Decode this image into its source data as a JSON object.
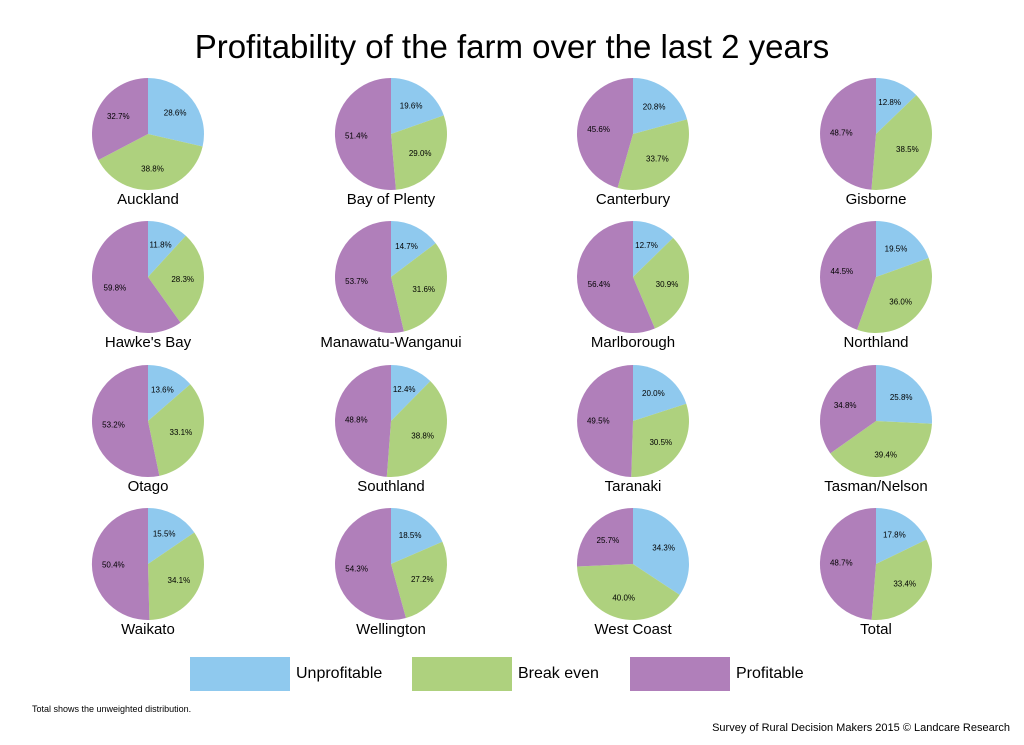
{
  "chart_data": {
    "type": "pie",
    "title": "Profitability of the farm over the last 2 years",
    "categories": [
      "Unprofitable",
      "Break even",
      "Profitable"
    ],
    "colors": [
      "#8fc9ee",
      "#aed17e",
      "#b07fba"
    ],
    "legend_position": "bottom",
    "pies": [
      {
        "label": "Auckland",
        "values": [
          28.6,
          38.8,
          32.7
        ],
        "value_labels": [
          "28.6%",
          "38.8%",
          "32.7%"
        ]
      },
      {
        "label": "Bay of Plenty",
        "values": [
          19.6,
          29.0,
          51.4
        ],
        "value_labels": [
          "19.6%",
          "29.0%",
          "51.4%"
        ]
      },
      {
        "label": "Canterbury",
        "values": [
          20.8,
          33.7,
          45.6
        ],
        "value_labels": [
          "20.8%",
          "33.7%",
          "45.6%"
        ]
      },
      {
        "label": "Gisborne",
        "values": [
          12.8,
          38.5,
          48.7
        ],
        "value_labels": [
          "12.8%",
          "38.5%",
          "48.7%"
        ]
      },
      {
        "label": "Hawke's Bay",
        "values": [
          11.8,
          28.3,
          59.8
        ],
        "value_labels": [
          "11.8%",
          "28.3%",
          "59.8%"
        ]
      },
      {
        "label": "Manawatu-Wanganui",
        "values": [
          14.7,
          31.6,
          53.7
        ],
        "value_labels": [
          "14.7%",
          "31.6%",
          "53.7%"
        ]
      },
      {
        "label": "Marlborough",
        "values": [
          12.7,
          30.9,
          56.4
        ],
        "value_labels": [
          "12.7%",
          "30.9%",
          "56.4%"
        ]
      },
      {
        "label": "Northland",
        "values": [
          19.5,
          36.0,
          44.5
        ],
        "value_labels": [
          "19.5%",
          "36.0%",
          "44.5%"
        ]
      },
      {
        "label": "Otago",
        "values": [
          13.6,
          33.1,
          53.2
        ],
        "value_labels": [
          "13.6%",
          "33.1%",
          "53.2%"
        ]
      },
      {
        "label": "Southland",
        "values": [
          12.4,
          38.8,
          48.8
        ],
        "value_labels": [
          "12.4%",
          "38.8%",
          "48.8%"
        ]
      },
      {
        "label": "Taranaki",
        "values": [
          20.0,
          30.5,
          49.5
        ],
        "value_labels": [
          "20.0%",
          "30.5%",
          "49.5%"
        ]
      },
      {
        "label": "Tasman/Nelson",
        "values": [
          25.8,
          39.4,
          34.8
        ],
        "value_labels": [
          "25.8%",
          "39.4%",
          "34.8%"
        ]
      },
      {
        "label": "Waikato",
        "values": [
          15.5,
          34.1,
          50.4
        ],
        "value_labels": [
          "15.5%",
          "34.1%",
          "50.4%"
        ]
      },
      {
        "label": "Wellington",
        "values": [
          18.5,
          27.2,
          54.3
        ],
        "value_labels": [
          "18.5%",
          "27.2%",
          "54.3%"
        ]
      },
      {
        "label": "West Coast",
        "values": [
          34.3,
          40.0,
          25.7
        ],
        "value_labels": [
          "34.3%",
          "40.0%",
          "25.7%"
        ]
      },
      {
        "label": "Total",
        "values": [
          17.8,
          33.4,
          48.7
        ],
        "value_labels": [
          "17.8%",
          "33.4%",
          "48.7%"
        ]
      }
    ]
  },
  "footnote": "Total shows the unweighted distribution.",
  "source": "Survey of Rural Decision Makers 2015 © Landcare Research"
}
